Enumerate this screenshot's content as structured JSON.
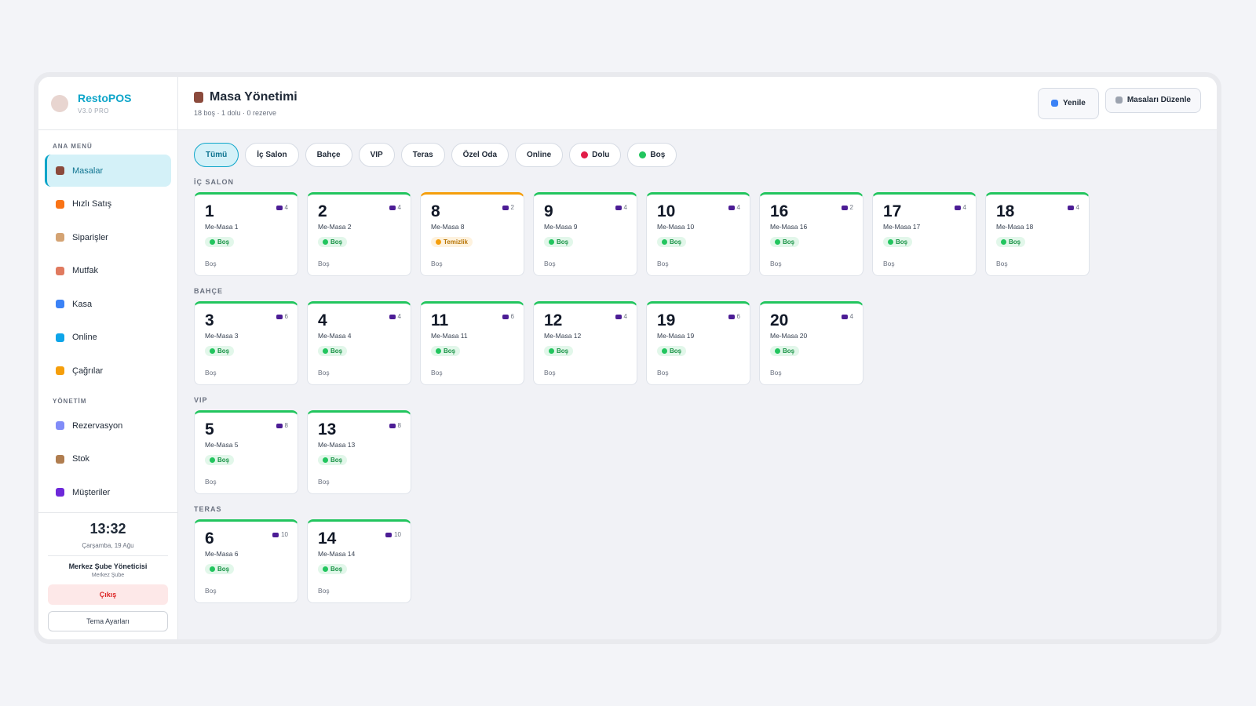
{
  "sidebar": {
    "brand": "RestoPOS",
    "version": "V3.0 PRO",
    "sections": [
      {
        "title": "ANA MENÜ",
        "items": [
          {
            "label": "Masalar",
            "icon_color": "#8b4a3c",
            "active": true
          },
          {
            "label": "Hızlı Satış",
            "icon_color": "#f97316"
          },
          {
            "label": "Siparişler",
            "icon_color": "#d4a373"
          },
          {
            "label": "Mutfak",
            "icon_color": "#e07a5f"
          },
          {
            "label": "Kasa",
            "icon_color": "#3b82f6"
          },
          {
            "label": "Online",
            "icon_color": "#0ea5e9"
          },
          {
            "label": "Çağrılar",
            "icon_color": "#f59e0b"
          }
        ]
      },
      {
        "title": "YÖNETİM",
        "items": [
          {
            "label": "Rezervasyon",
            "icon_color": "#818cf8"
          },
          {
            "label": "Stok",
            "icon_color": "#b07d4f"
          },
          {
            "label": "Müşteriler",
            "icon_color": "#6d28d9"
          }
        ]
      }
    ],
    "clock": {
      "time": "13:32",
      "date": "Çarşamba, 19 Ağu"
    },
    "user": {
      "name": "Merkez Şube Yöneticisi",
      "branch": "Merkez Şube"
    },
    "logout": "Çıkış",
    "theme": "Tema Ayarları"
  },
  "header": {
    "title": "Masa Yönetimi",
    "summary": "18 boş · 1 dolu · 0 rezerve",
    "buttons": [
      {
        "label": "Yenile",
        "icon_color": "#3b82f6"
      },
      {
        "label": "Masaları Düzenle",
        "icon_color": "#9ca3af"
      }
    ]
  },
  "filters": [
    {
      "label": "Tümü",
      "active": true
    },
    {
      "label": "İç Salon"
    },
    {
      "label": "Bahçe"
    },
    {
      "label": "VIP"
    },
    {
      "label": "Teras"
    },
    {
      "label": "Özel Oda"
    },
    {
      "label": "Online"
    },
    {
      "label": "Dolu",
      "dot": "#e11d48"
    },
    {
      "label": "Boş",
      "dot": "#22c55e"
    }
  ],
  "sections": [
    {
      "title": "İÇ SALON",
      "tables": [
        {
          "number": 1,
          "name": "Me-Masa 1",
          "capacity": 4,
          "status": "Boş",
          "note": "Boş",
          "color": "#22c55e"
        },
        {
          "number": 2,
          "name": "Me-Masa 2",
          "capacity": 4,
          "status": "Boş",
          "note": "Boş",
          "color": "#22c55e"
        },
        {
          "number": 8,
          "name": "Me-Masa 8",
          "capacity": 2,
          "status": "Temizlik",
          "note": "Boş",
          "color": "#f59e0b"
        },
        {
          "number": 9,
          "name": "Me-Masa 9",
          "capacity": 4,
          "status": "Boş",
          "note": "Boş",
          "color": "#22c55e"
        },
        {
          "number": 10,
          "name": "Me-Masa 10",
          "capacity": 4,
          "status": "Boş",
          "note": "Boş",
          "color": "#22c55e"
        },
        {
          "number": 16,
          "name": "Me-Masa 16",
          "capacity": 2,
          "status": "Boş",
          "note": "Boş",
          "color": "#22c55e"
        },
        {
          "number": 17,
          "name": "Me-Masa 17",
          "capacity": 4,
          "status": "Boş",
          "note": "Boş",
          "color": "#22c55e"
        },
        {
          "number": 18,
          "name": "Me-Masa 18",
          "capacity": 4,
          "status": "Boş",
          "note": "Boş",
          "color": "#22c55e"
        }
      ]
    },
    {
      "title": "BAHÇE",
      "tables": [
        {
          "number": 3,
          "name": "Me-Masa 3",
          "capacity": 6,
          "status": "Boş",
          "note": "Boş",
          "color": "#22c55e"
        },
        {
          "number": 4,
          "name": "Me-Masa 4",
          "capacity": 4,
          "status": "Boş",
          "note": "Boş",
          "color": "#22c55e"
        },
        {
          "number": 11,
          "name": "Me-Masa 11",
          "capacity": 6,
          "status": "Boş",
          "note": "Boş",
          "color": "#22c55e"
        },
        {
          "number": 12,
          "name": "Me-Masa 12",
          "capacity": 4,
          "status": "Boş",
          "note": "Boş",
          "color": "#22c55e"
        },
        {
          "number": 19,
          "name": "Me-Masa 19",
          "capacity": 6,
          "status": "Boş",
          "note": "Boş",
          "color": "#22c55e"
        },
        {
          "number": 20,
          "name": "Me-Masa 20",
          "capacity": 4,
          "status": "Boş",
          "note": "Boş",
          "color": "#22c55e"
        }
      ]
    },
    {
      "title": "VIP",
      "tables": [
        {
          "number": 5,
          "name": "Me-Masa 5",
          "capacity": 8,
          "status": "Boş",
          "note": "Boş",
          "color": "#22c55e"
        },
        {
          "number": 13,
          "name": "Me-Masa 13",
          "capacity": 8,
          "status": "Boş",
          "note": "Boş",
          "color": "#22c55e"
        }
      ]
    },
    {
      "title": "TERAS",
      "tables": [
        {
          "number": 6,
          "name": "Me-Masa 6",
          "capacity": 10,
          "status": "Boş",
          "note": "Boş",
          "color": "#22c55e"
        },
        {
          "number": 14,
          "name": "Me-Masa 14",
          "capacity": 10,
          "status": "Boş",
          "note": "Boş",
          "color": "#22c55e"
        }
      ]
    }
  ]
}
